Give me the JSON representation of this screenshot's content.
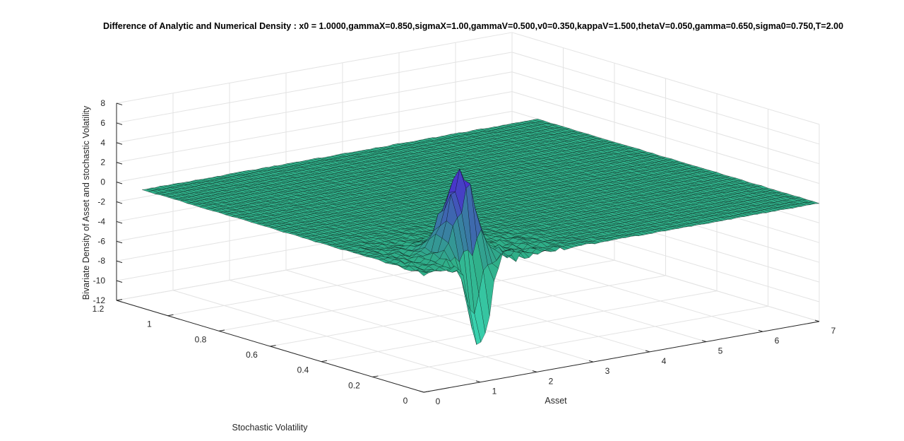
{
  "chart_data": {
    "type": "surface",
    "title": "Difference of Analytic and Numerical Density  : x0 = 1.0000,gammaX=0.850,sigmaX=1.00,gammaV=0.500,v0=0.350,kappaV=1.500,thetaV=0.050,gamma=0.650,sigma0=0.750,T=2.00",
    "xlabel": "Asset",
    "ylabel": "Stochastic Volatility",
    "zlabel": "Bivariate Density of Asset and stochastic Volatility",
    "xlim": [
      0,
      7
    ],
    "ylim": [
      0,
      1.2
    ],
    "zlim": [
      -12,
      8
    ],
    "xticks": [
      "0",
      "1",
      "2",
      "3",
      "4",
      "5",
      "6",
      "7"
    ],
    "yticks": [
      "0",
      "0.2",
      "0.4",
      "0.6",
      "0.8",
      "1",
      "1.2"
    ],
    "zticks": [
      "-12",
      "-10",
      "-8",
      "-6",
      "-4",
      "-2",
      "0",
      "2",
      "4",
      "6",
      "8"
    ],
    "grid": true,
    "surface_domain": {
      "x": [
        0,
        7
      ],
      "y": [
        0,
        1.1
      ]
    },
    "baseline_z": 0,
    "features": {
      "peak": {
        "x": 1.1,
        "y": 0.1,
        "z": 8
      },
      "trough": {
        "x": 1.0,
        "y": 0.0,
        "z": -10
      }
    },
    "colors": {
      "low": "#3fe3c2",
      "mid": "#2fae88",
      "high": "#4b2bd0",
      "edge": "#000000",
      "grid": "#e3e3e3",
      "axis": "#262626"
    }
  }
}
